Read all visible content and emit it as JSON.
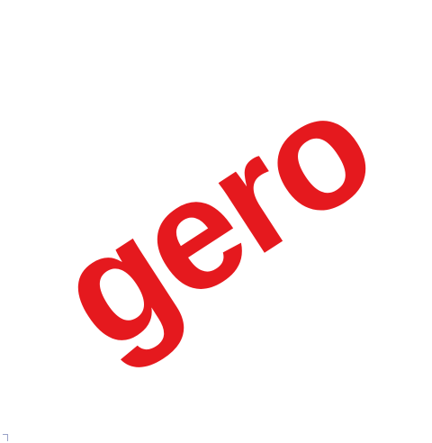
{
  "logo": {
    "text": "gero",
    "color": "#e5191e"
  },
  "background_color": "#ffffff"
}
